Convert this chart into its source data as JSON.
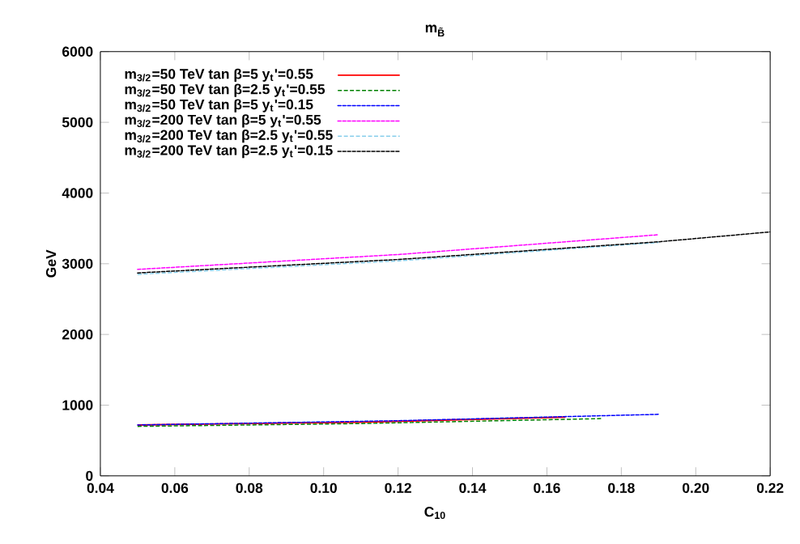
{
  "chart_data": {
    "type": "line",
    "title": "m$_{B̃}$",
    "xlabel": "C$_{10}$",
    "ylabel": "GeV",
    "xlim": [
      0.04,
      0.22
    ],
    "xticks": [
      {
        "value": 0.04,
        "label": "0.04"
      },
      {
        "value": 0.06,
        "label": "0.06"
      },
      {
        "value": 0.08,
        "label": "0.08"
      },
      {
        "value": 0.1,
        "label": "0.10"
      },
      {
        "value": 0.12,
        "label": "0.12"
      },
      {
        "value": 0.14,
        "label": "0.14"
      },
      {
        "value": 0.16,
        "label": "0.16"
      },
      {
        "value": 0.18,
        "label": "0.18"
      },
      {
        "value": 0.2,
        "label": "0.20"
      },
      {
        "value": 0.22,
        "label": "0.22"
      }
    ],
    "ylim": [
      0,
      6000
    ],
    "yticks": [
      0,
      1000,
      2000,
      3000,
      4000,
      5000,
      6000
    ],
    "grid": false,
    "legend": "top",
    "marker": "none",
    "series": [
      {
        "name": "m$_{3/2}$=50 TeV   tan β=5   y$_{t}$'=0.55",
        "color": "#ff0000",
        "line_style": "solid",
        "x": [
          0.05,
          0.11,
          0.165
        ],
        "values": [
          720,
          760,
          830
        ]
      },
      {
        "name": "m$_{3/2}$=50 TeV   tan β=2.5  y$_{t}$'=0.55",
        "color": "#008000",
        "line_style": "dashed",
        "x": [
          0.05,
          0.11,
          0.175
        ],
        "values": [
          700,
          740,
          810
        ]
      },
      {
        "name": "m$_{3/2}$=50 TeV   tan β=5   y$_{t}$'=0.15",
        "color": "#0000ff",
        "line_style": "dotted",
        "x": [
          0.05,
          0.12,
          0.19
        ],
        "values": [
          720,
          780,
          870
        ]
      },
      {
        "name": "m$_{3/2}$=200 TeV  tan β=5   y$_{t}$'=0.55",
        "color": "#ff00ff",
        "line_style": "dotted",
        "x": [
          0.05,
          0.12,
          0.19
        ],
        "values": [
          2920,
          3130,
          3410
        ]
      },
      {
        "name": "m$_{3/2}$=200 TeV  tan β=2.5  y$_{t}$'=0.55",
        "color": "#87ceeb",
        "line_style": "dashed",
        "x": [
          0.05,
          0.12,
          0.19
        ],
        "values": [
          2850,
          3040,
          3300
        ]
      },
      {
        "name": "m$_{3/2}$=200 TeV  tan β=2.5  y$_{t}$'=0.15",
        "color": "#000000",
        "line_style": "dotted",
        "x": [
          0.05,
          0.12,
          0.19,
          0.22
        ],
        "values": [
          2870,
          3060,
          3310,
          3450
        ]
      }
    ]
  }
}
